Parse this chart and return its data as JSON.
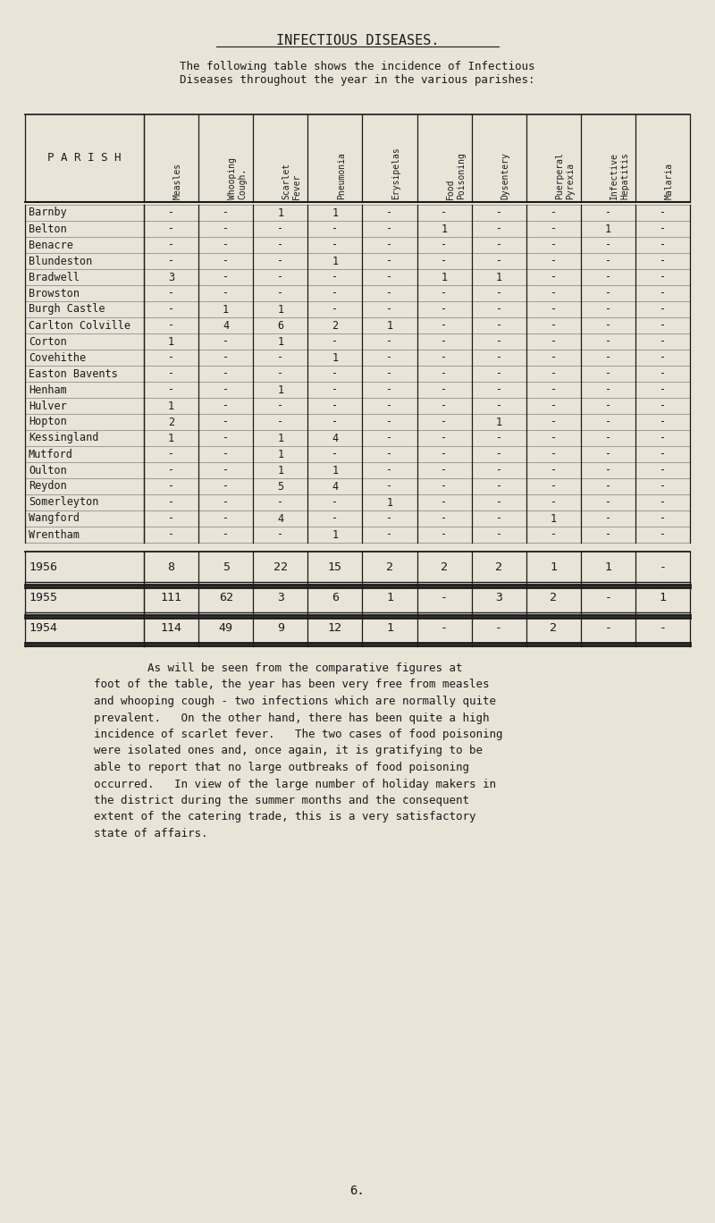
{
  "title": "INFECTIOUS DISEASES.",
  "subtitle": "The following table shows the incidence of Infectious\nDiseases throughout the year in the various parishes:",
  "col_headers": [
    "Measles",
    "Whooping\nCough.",
    "Scarlet\nFever",
    "Pneumonia",
    "Erysipelas",
    "Food\nPoisoning",
    "Dysentery",
    "Puerperal\nPyrexia",
    "Infective\nHepatitis",
    "Malaria"
  ],
  "parish_col": "P A R I S H",
  "parishes": [
    "Barnby",
    "Belton",
    "Benacre",
    "Blundeston",
    "Bradwell",
    "Browston",
    "Burgh Castle",
    "Carlton Colville",
    "Corton",
    "Covehithe",
    "Easton Bavents",
    "Henham",
    "Hulver",
    "Hopton",
    "Kessingland",
    "Mutford",
    "Oulton",
    "Reydon",
    "Somerleyton",
    "Wangford",
    "Wrentham"
  ],
  "data": [
    [
      "-",
      "-",
      "1",
      "1",
      "-",
      "-",
      "-",
      "-",
      "-",
      "-"
    ],
    [
      "-",
      "-",
      "-",
      "-",
      "-",
      "1",
      "-",
      "-",
      "1",
      "-"
    ],
    [
      "-",
      "-",
      "-",
      "-",
      "-",
      "-",
      "-",
      "-",
      "-",
      "-"
    ],
    [
      "-",
      "-",
      "-",
      "1",
      "-",
      "-",
      "-",
      "-",
      "-",
      "-"
    ],
    [
      "3",
      "-",
      "-",
      "-",
      "-",
      "1",
      "1",
      "-",
      "-",
      "-"
    ],
    [
      "-",
      "-",
      "-",
      "-",
      "-",
      "-",
      "-",
      "-",
      "-",
      "-"
    ],
    [
      "-",
      "1",
      "1",
      "-",
      "-",
      "-",
      "-",
      "-",
      "-",
      "-"
    ],
    [
      "-",
      "4",
      "6",
      "2",
      "1",
      "-",
      "-",
      "-",
      "-",
      "-"
    ],
    [
      "1",
      "-",
      "1",
      "-",
      "-",
      "-",
      "-",
      "-",
      "-",
      "-"
    ],
    [
      "-",
      "-",
      "-",
      "1",
      "-",
      "-",
      "-",
      "-",
      "-",
      "-"
    ],
    [
      "-",
      "-",
      "-",
      "-",
      "-",
      "-",
      "-",
      "-",
      "-",
      "-"
    ],
    [
      "-",
      "-",
      "1",
      "-",
      "-",
      "-",
      "-",
      "-",
      "-",
      "-"
    ],
    [
      "1",
      "-",
      "-",
      "-",
      "-",
      "-",
      "-",
      "-",
      "-",
      "-"
    ],
    [
      "2",
      "-",
      "-",
      "-",
      "-",
      "-",
      "1",
      "-",
      "-",
      "-"
    ],
    [
      "1",
      "-",
      "1",
      "4",
      "-",
      "-",
      "-",
      "-",
      "-",
      "-"
    ],
    [
      "-",
      "-",
      "1",
      "-",
      "-",
      "-",
      "-",
      "-",
      "-",
      "-"
    ],
    [
      "-",
      "-",
      "1",
      "1",
      "-",
      "-",
      "-",
      "-",
      "-",
      "-"
    ],
    [
      "-",
      "-",
      "5",
      "4",
      "-",
      "-",
      "-",
      "-",
      "-",
      "-"
    ],
    [
      "-",
      "-",
      "-",
      "-",
      "1",
      "-",
      "-",
      "-",
      "-",
      "-"
    ],
    [
      "-",
      "-",
      "4",
      "-",
      "-",
      "-",
      "-",
      "1",
      "-",
      "-"
    ],
    [
      "-",
      "-",
      "-",
      "1",
      "-",
      "-",
      "-",
      "-",
      "-",
      "-"
    ]
  ],
  "summary_rows": [
    {
      "year": "1956",
      "values": [
        "8",
        "5",
        "22",
        "15",
        "2",
        "2",
        "2",
        "1",
        "1",
        "-"
      ]
    },
    {
      "year": "1955",
      "values": [
        "111",
        "62",
        "3",
        "6",
        "1",
        "-",
        "3",
        "2",
        "-",
        "1"
      ]
    },
    {
      "year": "1954",
      "values": [
        "114",
        "49",
        "9",
        "12",
        "1",
        "-",
        "-",
        "2",
        "-",
        "-"
      ]
    }
  ],
  "footer_text": "        As will be seen from the comparative figures at\nfoot of the table, the year has been very free from measles\nand whooping cough - two infections which are normally quite\nprevalent.   On the other hand, there has been quite a high\nincidence of scarlet fever.   The two cases of food poisoning\nwere isolated ones and, once again, it is gratifying to be\nable to report that no large outbreaks of food poisoning\noccurred.   In view of the large number of holiday makers in\nthe district during the summer months and the consequent\nextent of the catering trade, this is a very satisfactory\nstate of affairs.",
  "page_number": "6.",
  "bg_color": "#e8e4d8",
  "text_color": "#1a1a1a",
  "font_family": "monospace"
}
